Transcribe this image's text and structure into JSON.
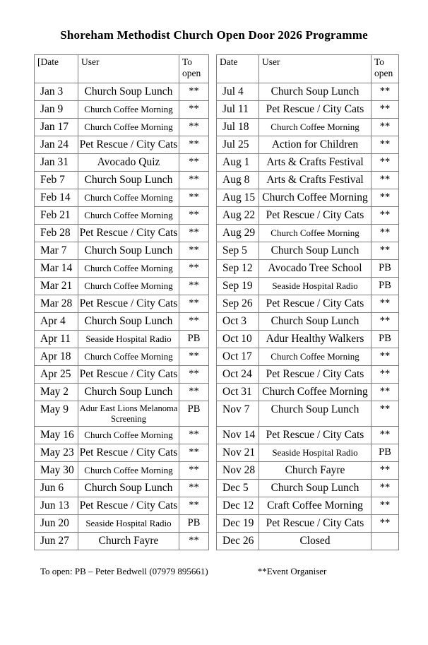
{
  "page": {
    "title": "Shoreham Methodist Church Open Door 2026 Programme"
  },
  "tables": {
    "left": {
      "headers": {
        "date": "[Date",
        "user": "User",
        "to_open": "To open"
      },
      "rows": [
        {
          "date": "Jan 3",
          "user": "Church Soup Lunch",
          "open": "**"
        },
        {
          "date": "Jan 9",
          "user": "Church Coffee Morning",
          "open": "**",
          "small": true
        },
        {
          "date": "Jan 17",
          "user": "Church Coffee Morning",
          "open": "**",
          "small": true
        },
        {
          "date": "Jan 24",
          "user": "Pet Rescue / City Cats",
          "open": "**"
        },
        {
          "date": "Jan 31",
          "user": "Avocado Quiz",
          "open": "**"
        },
        {
          "date": "Feb 7",
          "user": "Church Soup Lunch",
          "open": "**"
        },
        {
          "date": "Feb 14",
          "user": "Church Coffee Morning",
          "open": "**",
          "small": true
        },
        {
          "date": "Feb 21",
          "user": "Church Coffee Morning",
          "open": "**",
          "small": true
        },
        {
          "date": "Feb 28",
          "user": "Pet Rescue / City Cats",
          "open": "**"
        },
        {
          "date": "Mar 7",
          "user": "Church Soup Lunch",
          "open": "**"
        },
        {
          "date": "Mar 14",
          "user": "Church Coffee Morning",
          "open": "**",
          "small": true
        },
        {
          "date": "Mar 21",
          "user": "Church Coffee Morning",
          "open": "**",
          "small": true
        },
        {
          "date": "Mar 28",
          "user": "Pet Rescue / City Cats",
          "open": "**"
        },
        {
          "date": "Apr 4",
          "user": "Church Soup Lunch",
          "open": "**"
        },
        {
          "date": "Apr 11",
          "user": "Seaside Hospital Radio",
          "open": "PB",
          "small": true
        },
        {
          "date": "Apr 18",
          "user": "Church Coffee Morning",
          "open": "**",
          "small": true
        },
        {
          "date": "Apr 25",
          "user": "Pet Rescue / City Cats",
          "open": "**"
        },
        {
          "date": "May 2",
          "user": "Church Soup Lunch",
          "open": "**"
        },
        {
          "date": "May 9",
          "user": "Adur East Lions Melanoma Screening",
          "open": "PB",
          "small": true,
          "tall": true
        },
        {
          "date": "May 16",
          "user": "Church Coffee Morning",
          "open": "**",
          "small": true
        },
        {
          "date": "May 23",
          "user": "Pet Rescue / City Cats",
          "open": "**"
        },
        {
          "date": "May 30",
          "user": "Church Coffee Morning",
          "open": "**",
          "small": true
        },
        {
          "date": "Jun 6",
          "user": "Church Soup Lunch",
          "open": "**"
        },
        {
          "date": "Jun 13",
          "user": "Pet Rescue / City Cats",
          "open": "**"
        },
        {
          "date": "Jun 20",
          "user": "Seaside Hospital Radio",
          "open": "PB",
          "small": true
        },
        {
          "date": "Jun 27",
          "user": "Church Fayre",
          "open": "**"
        }
      ]
    },
    "right": {
      "headers": {
        "date": "Date",
        "user": "User",
        "to_open": "To open"
      },
      "rows": [
        {
          "date": "Jul 4",
          "user": "Church Soup Lunch",
          "open": "**"
        },
        {
          "date": "Jul 11",
          "user": "Pet Rescue / City Cats",
          "open": "**"
        },
        {
          "date": "Jul 18",
          "user": "Church Coffee Morning",
          "open": "**",
          "small": true
        },
        {
          "date": "Jul 25",
          "user": "Action for Children",
          "open": "**"
        },
        {
          "date": "Aug 1",
          "user": "Arts & Crafts Festival",
          "open": "**"
        },
        {
          "date": "Aug 8",
          "user": "Arts & Crafts Festival",
          "open": "**"
        },
        {
          "date": "Aug 15",
          "user": "Church Coffee Morning",
          "open": "**"
        },
        {
          "date": "Aug 22",
          "user": "Pet Rescue / City Cats",
          "open": "**"
        },
        {
          "date": "Aug 29",
          "user": "Church Coffee Morning",
          "open": "**",
          "small": true
        },
        {
          "date": "Sep 5",
          "user": "Church Soup Lunch",
          "open": "**"
        },
        {
          "date": "Sep 12",
          "user": "Avocado Tree School",
          "open": "PB"
        },
        {
          "date": "Sep 19",
          "user": "Seaside Hospital Radio",
          "open": "PB",
          "small": true
        },
        {
          "date": "Sep 26",
          "user": "Pet Rescue / City Cats",
          "open": "**"
        },
        {
          "date": "Oct 3",
          "user": "Church Soup Lunch",
          "open": "**"
        },
        {
          "date": "Oct 10",
          "user": "Adur Healthy Walkers",
          "open": "PB"
        },
        {
          "date": "Oct 17",
          "user": "Church Coffee Morning",
          "open": "**",
          "small": true
        },
        {
          "date": "Oct 24",
          "user": "Pet Rescue / City Cats",
          "open": "**"
        },
        {
          "date": "Oct 31",
          "user": "Church Coffee Morning",
          "open": "**"
        },
        {
          "date": "Nov 7",
          "user": "Church Soup Lunch",
          "open": "**",
          "tall": true
        },
        {
          "date": "Nov 14",
          "user": "Pet Rescue / City Cats",
          "open": "**"
        },
        {
          "date": "Nov 21",
          "user": "Seaside Hospital Radio",
          "open": "PB",
          "small": true
        },
        {
          "date": "Nov 28",
          "user": "Church Fayre",
          "open": "**"
        },
        {
          "date": "Dec 5",
          "user": "Church Soup Lunch",
          "open": "**"
        },
        {
          "date": "Dec 12",
          "user": "Craft Coffee Morning",
          "open": "**"
        },
        {
          "date": "Dec 19",
          "user": "Pet Rescue / City Cats",
          "open": "**"
        },
        {
          "date": "Dec 26",
          "user": "Closed",
          "open": ""
        }
      ]
    }
  },
  "footer": {
    "to_open_note": "To open: PB – Peter Bedwell (07979 895661)",
    "organiser_note": "**Event Organiser"
  }
}
